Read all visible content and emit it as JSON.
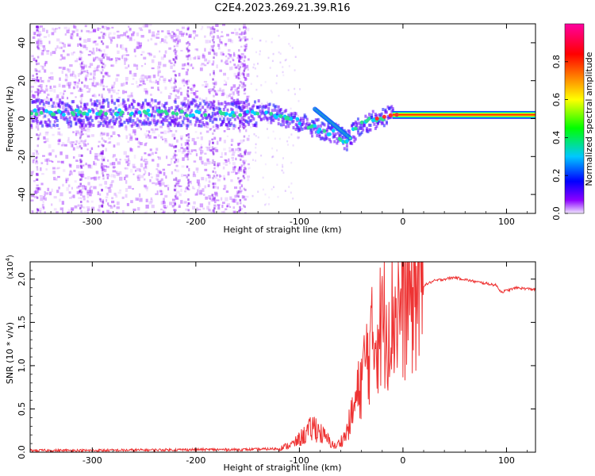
{
  "title": "C2E4.2023.269.21.39.R16",
  "chart_data": [
    {
      "type": "heatmap",
      "name": "spectrogram",
      "xlabel": "Height of straight line (km)",
      "ylabel": "Frequency (Hz)",
      "xlim": [
        -360,
        128
      ],
      "ylim": [
        -50,
        50
      ],
      "x_ticks": [
        "-300",
        "-200",
        "-100",
        "0",
        "100"
      ],
      "y_ticks": [
        "-40",
        "-20",
        "0",
        "20",
        "40"
      ],
      "colorbar": {
        "label": "Normalized spectral amplitude",
        "range": [
          0.0,
          1.0
        ],
        "ticks": [
          "0.0",
          "0.2",
          "0.4",
          "0.6",
          "0.8"
        ],
        "colors": [
          "#f0e6ff",
          "#8c00ff",
          "#0000ff",
          "#00c8ff",
          "#00ff00",
          "#ffff00",
          "#ff8000",
          "#ff0000",
          "#ff00a0"
        ]
      },
      "main_signal": [
        {
          "x": -360,
          "freq": 3
        },
        {
          "x": -300,
          "freq": 3
        },
        {
          "x": -200,
          "freq": 3
        },
        {
          "x": -150,
          "freq": 3
        },
        {
          "x": -130,
          "freq": 3
        },
        {
          "x": -110,
          "freq": 0
        },
        {
          "x": -95,
          "freq": -3
        },
        {
          "x": -80,
          "freq": -6
        },
        {
          "x": -65,
          "freq": -8
        },
        {
          "x": -55,
          "freq": -12
        },
        {
          "x": -50,
          "freq": -8
        },
        {
          "x": -40,
          "freq": -3
        },
        {
          "x": -25,
          "freq": 0
        },
        {
          "x": -10,
          "freq": 2
        },
        {
          "x": 0,
          "freq": 2
        },
        {
          "x": 128,
          "freq": 2
        }
      ]
    },
    {
      "type": "line",
      "name": "snr",
      "xlabel": "Height of straight line (km)",
      "ylabel": "SNR (10 * v/v)",
      "scale_label": "(x10",
      "scale_exponent": "4",
      "scale_close": ")",
      "xlim": [
        -360,
        128
      ],
      "ylim": [
        0,
        2.2
      ],
      "x_ticks": [
        "-300",
        "-200",
        "-100",
        "0",
        "100"
      ],
      "y_ticks": [
        "0.0",
        "0.5",
        "1.0",
        "1.5",
        "2.0"
      ],
      "color": "#ee3333",
      "series": [
        {
          "x": -360,
          "y": 0.02
        },
        {
          "x": -300,
          "y": 0.02
        },
        {
          "x": -200,
          "y": 0.03
        },
        {
          "x": -150,
          "y": 0.03
        },
        {
          "x": -120,
          "y": 0.04
        },
        {
          "x": -105,
          "y": 0.1
        },
        {
          "x": -95,
          "y": 0.2
        },
        {
          "x": -85,
          "y": 0.3
        },
        {
          "x": -78,
          "y": 0.2
        },
        {
          "x": -65,
          "y": 0.06
        },
        {
          "x": -55,
          "y": 0.2
        },
        {
          "x": -45,
          "y": 0.6
        },
        {
          "x": -35,
          "y": 1.1
        },
        {
          "x": -25,
          "y": 1.4
        },
        {
          "x": -15,
          "y": 1.55
        },
        {
          "x": -5,
          "y": 1.65
        },
        {
          "x": 5,
          "y": 1.8
        },
        {
          "x": 15,
          "y": 1.9
        },
        {
          "x": 30,
          "y": 1.98
        },
        {
          "x": 50,
          "y": 2.02
        },
        {
          "x": 70,
          "y": 1.97
        },
        {
          "x": 90,
          "y": 1.93
        },
        {
          "x": 95,
          "y": 1.85
        },
        {
          "x": 110,
          "y": 1.9
        },
        {
          "x": 128,
          "y": 1.88
        }
      ]
    }
  ]
}
